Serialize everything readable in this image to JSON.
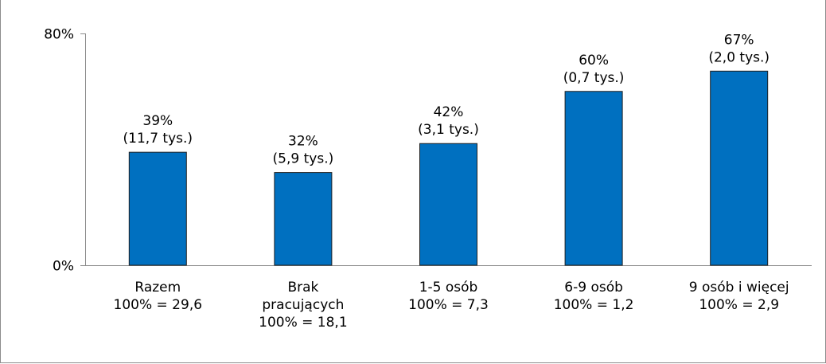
{
  "chart_data": {
    "type": "bar",
    "title": "",
    "xlabel": "",
    "ylabel": "",
    "ylim": [
      0,
      80
    ],
    "y_tick_labels": [
      "0%",
      "80%"
    ],
    "y_ticks": [
      0,
      80
    ],
    "grid": false,
    "legend": "none",
    "bar_color": "#0070C0",
    "categories": [
      [
        "Razem",
        "100% = 29,6"
      ],
      [
        "Brak",
        "pracujących",
        "100% = 18,1"
      ],
      [
        "1-5 osób",
        "100% = 7,3"
      ],
      [
        "6-9 osób",
        "100% = 1,2"
      ],
      [
        "9 osób i więcej",
        "100% = 2,9"
      ]
    ],
    "values": [
      39,
      32,
      42,
      60,
      67
    ],
    "data_labels": [
      [
        "39%",
        "(11,7 tys.)"
      ],
      [
        "32%",
        "(5,9 tys.)"
      ],
      [
        "42%",
        "(3,1 tys.)"
      ],
      [
        "60%",
        "(0,7 tys.)"
      ],
      [
        "67%",
        "(2,0 tys.)"
      ]
    ]
  }
}
